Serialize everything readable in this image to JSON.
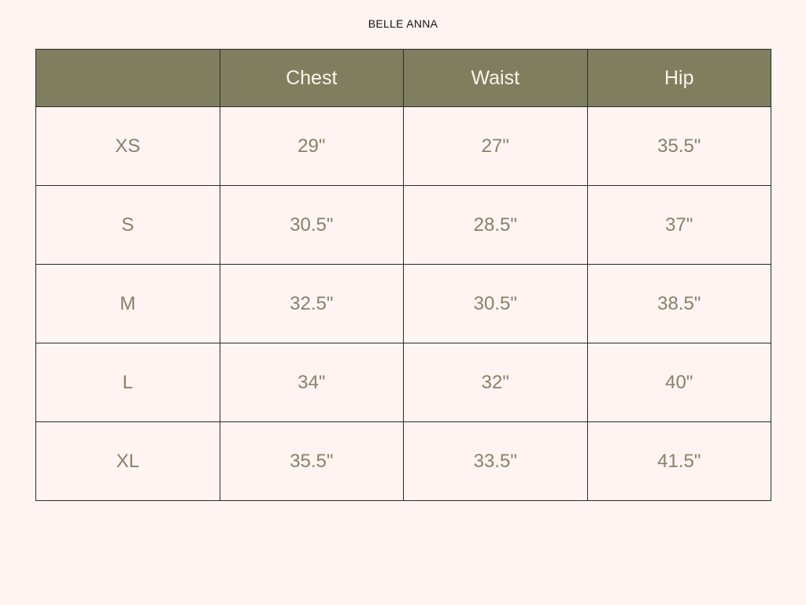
{
  "brand": "BELLE ANNA",
  "colors": {
    "header_bg": "#7f7f5f",
    "header_text": "#fbf3ea",
    "cell_text": "#85826a",
    "background": "#fff4f2"
  },
  "table": {
    "headers": [
      "",
      "Chest",
      "Waist",
      "Hip"
    ],
    "rows": [
      [
        "XS",
        "29\"",
        "27\"",
        "35.5\""
      ],
      [
        "S",
        "30.5\"",
        "28.5\"",
        "37\""
      ],
      [
        "M",
        "32.5\"",
        "30.5\"",
        "38.5\""
      ],
      [
        "L",
        "34\"",
        "32\"",
        "40\""
      ],
      [
        "XL",
        "35.5\"",
        "33.5\"",
        "41.5\""
      ]
    ]
  }
}
